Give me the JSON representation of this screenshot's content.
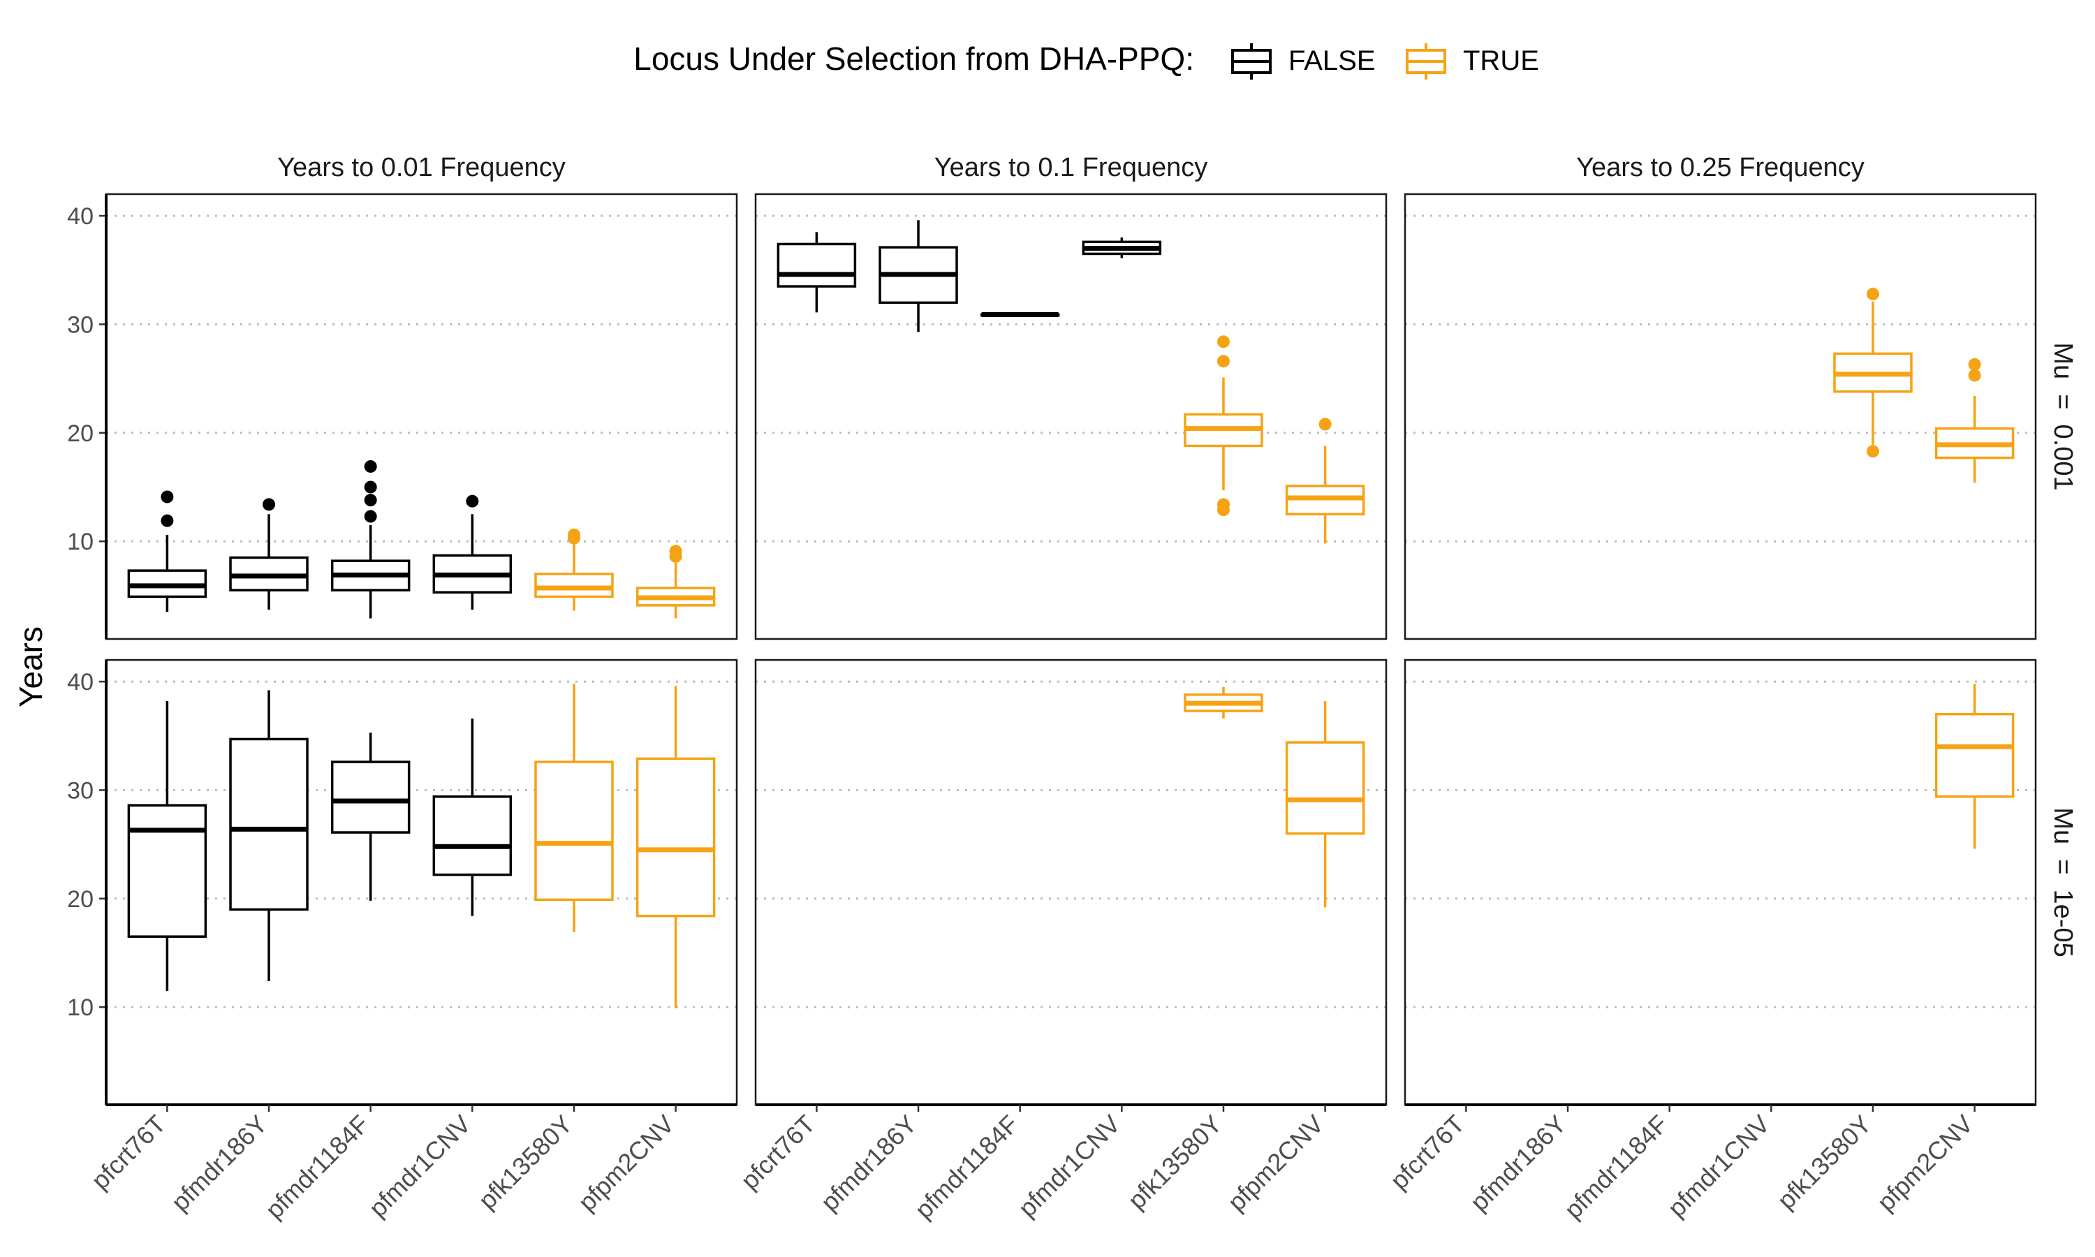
{
  "legend": {
    "title": "Locus Under Selection from DHA-PPQ:",
    "entries": [
      {
        "label": "FALSE",
        "color": "#000000"
      },
      {
        "label": "TRUE",
        "color": "#F5A315"
      }
    ]
  },
  "chart_data": {
    "type": "boxplot",
    "ylabel": "Years",
    "ylim": [
      1,
      42
    ],
    "yticks": [
      10,
      20,
      30,
      40
    ],
    "grid": "horizontal-dotted",
    "legend_position": "top",
    "categories": [
      "pfcrt76T",
      "pfmdr186Y",
      "pfmdr1184F",
      "pfmdr1CNV",
      "pfk13580Y",
      "pfpm2CNV"
    ],
    "columns": [
      "Years to 0.01 Frequency",
      "Years to 0.1 Frequency",
      "Years to 0.25 Frequency"
    ],
    "rows": [
      "Mu  =  0.001",
      "Mu  =  1e-05"
    ],
    "panels": [
      {
        "row": 0,
        "col": 0,
        "boxes": [
          {
            "category": "pfcrt76T",
            "selected": "FALSE",
            "min": 3.5,
            "q1": 4.9,
            "median": 5.9,
            "q3": 7.3,
            "max": 10.6,
            "outliers": [
              11.9,
              14.1
            ]
          },
          {
            "category": "pfmdr186Y",
            "selected": "FALSE",
            "min": 3.7,
            "q1": 5.5,
            "median": 6.8,
            "q3": 8.5,
            "max": 12.5,
            "outliers": [
              13.4
            ]
          },
          {
            "category": "pfmdr1184F",
            "selected": "FALSE",
            "min": 2.9,
            "q1": 5.5,
            "median": 6.9,
            "q3": 8.2,
            "max": 11.5,
            "outliers": [
              12.3,
              13.8,
              15.0,
              16.9
            ]
          },
          {
            "category": "pfmdr1CNV",
            "selected": "FALSE",
            "min": 3.7,
            "q1": 5.3,
            "median": 6.9,
            "q3": 8.7,
            "max": 12.5,
            "outliers": [
              13.7
            ]
          },
          {
            "category": "pfk13580Y",
            "selected": "TRUE",
            "min": 3.6,
            "q1": 4.9,
            "median": 5.7,
            "q3": 7.0,
            "max": 9.9,
            "outliers": [
              10.3,
              10.6
            ]
          },
          {
            "category": "pfpm2CNV",
            "selected": "TRUE",
            "min": 2.9,
            "q1": 4.1,
            "median": 4.8,
            "q3": 5.7,
            "max": 8.0,
            "outliers": [
              8.6,
              9.1
            ]
          }
        ]
      },
      {
        "row": 0,
        "col": 1,
        "boxes": [
          {
            "category": "pfcrt76T",
            "selected": "FALSE",
            "min": 31.1,
            "q1": 33.5,
            "median": 34.6,
            "q3": 37.4,
            "max": 38.5,
            "outliers": []
          },
          {
            "category": "pfmdr186Y",
            "selected": "FALSE",
            "min": 29.3,
            "q1": 32.0,
            "median": 34.6,
            "q3": 37.1,
            "max": 39.6,
            "outliers": []
          },
          {
            "category": "pfmdr1184F",
            "selected": "FALSE",
            "min": 30.9,
            "q1": 30.9,
            "median": 30.9,
            "q3": 30.9,
            "max": 30.9,
            "outliers": []
          },
          {
            "category": "pfmdr1CNV",
            "selected": "FALSE",
            "min": 36.1,
            "q1": 36.5,
            "median": 37.0,
            "q3": 37.6,
            "max": 38.0,
            "outliers": []
          },
          {
            "category": "pfk13580Y",
            "selected": "TRUE",
            "min": 14.7,
            "q1": 18.8,
            "median": 20.4,
            "q3": 21.7,
            "max": 25.1,
            "outliers": [
              12.9,
              13.4,
              26.6,
              28.4
            ]
          },
          {
            "category": "pfpm2CNV",
            "selected": "TRUE",
            "min": 9.8,
            "q1": 12.5,
            "median": 14.0,
            "q3": 15.1,
            "max": 18.8,
            "outliers": [
              20.8
            ]
          }
        ]
      },
      {
        "row": 0,
        "col": 2,
        "boxes": [
          {
            "category": "pfk13580Y",
            "selected": "TRUE",
            "min": 18.9,
            "q1": 23.8,
            "median": 25.4,
            "q3": 27.3,
            "max": 32.1,
            "outliers": [
              18.3,
              32.8
            ]
          },
          {
            "category": "pfpm2CNV",
            "selected": "TRUE",
            "min": 15.4,
            "q1": 17.7,
            "median": 18.9,
            "q3": 20.4,
            "max": 23.4,
            "outliers": [
              25.3,
              26.3
            ]
          }
        ]
      },
      {
        "row": 1,
        "col": 0,
        "boxes": [
          {
            "category": "pfcrt76T",
            "selected": "FALSE",
            "min": 11.5,
            "q1": 16.5,
            "median": 26.3,
            "q3": 28.6,
            "max": 38.2,
            "outliers": []
          },
          {
            "category": "pfmdr186Y",
            "selected": "FALSE",
            "min": 12.4,
            "q1": 19.0,
            "median": 26.4,
            "q3": 34.7,
            "max": 39.2,
            "outliers": []
          },
          {
            "category": "pfmdr1184F",
            "selected": "FALSE",
            "min": 19.8,
            "q1": 26.1,
            "median": 29.0,
            "q3": 32.6,
            "max": 35.3,
            "outliers": []
          },
          {
            "category": "pfmdr1CNV",
            "selected": "FALSE",
            "min": 18.4,
            "q1": 22.2,
            "median": 24.8,
            "q3": 29.4,
            "max": 36.6,
            "outliers": []
          },
          {
            "category": "pfk13580Y",
            "selected": "TRUE",
            "min": 16.9,
            "q1": 19.9,
            "median": 25.1,
            "q3": 32.6,
            "max": 39.8,
            "outliers": []
          },
          {
            "category": "pfpm2CNV",
            "selected": "TRUE",
            "min": 9.9,
            "q1": 18.4,
            "median": 24.5,
            "q3": 32.9,
            "max": 39.6,
            "outliers": []
          }
        ]
      },
      {
        "row": 1,
        "col": 1,
        "boxes": [
          {
            "category": "pfk13580Y",
            "selected": "TRUE",
            "min": 36.6,
            "q1": 37.3,
            "median": 38.0,
            "q3": 38.8,
            "max": 39.5,
            "outliers": []
          },
          {
            "category": "pfpm2CNV",
            "selected": "TRUE",
            "min": 19.2,
            "q1": 26.0,
            "median": 29.1,
            "q3": 34.4,
            "max": 38.2,
            "outliers": []
          }
        ]
      },
      {
        "row": 1,
        "col": 2,
        "boxes": [
          {
            "category": "pfpm2CNV",
            "selected": "TRUE",
            "min": 24.6,
            "q1": 29.4,
            "median": 34.0,
            "q3": 37.0,
            "max": 39.8,
            "outliers": []
          }
        ]
      }
    ]
  }
}
